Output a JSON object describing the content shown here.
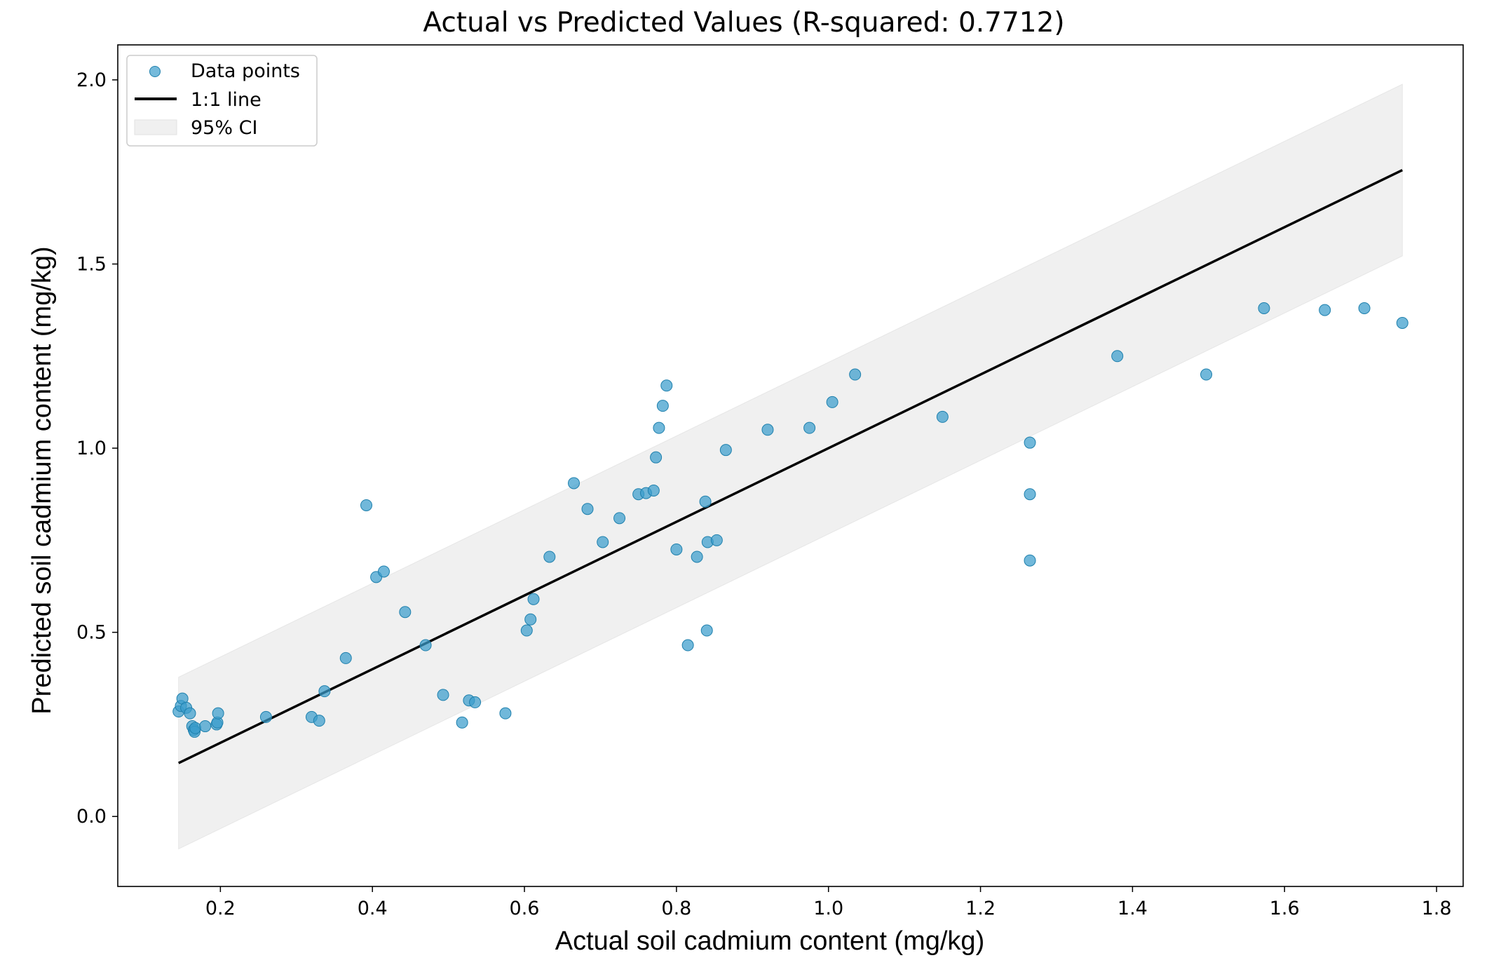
{
  "chart_data": {
    "type": "scatter",
    "title": "Actual vs Predicted Values (R-squared: 0.7712)",
    "xlabel": "Actual soil cadmium content (mg/kg)",
    "ylabel": "Predicted soil cadmium content (mg/kg)",
    "xlim": [
      0.065,
      1.835
    ],
    "ylim": [
      -0.19,
      2.095
    ],
    "x_ticks": [
      0.2,
      0.4,
      0.6,
      0.8,
      1.0,
      1.2,
      1.4,
      1.6,
      1.8
    ],
    "x_tick_labels": [
      "0.2",
      "0.4",
      "0.6",
      "0.8",
      "1.0",
      "1.2",
      "1.4",
      "1.6",
      "1.8"
    ],
    "y_ticks": [
      0.0,
      0.5,
      1.0,
      1.5,
      2.0
    ],
    "y_tick_labels": [
      "0.0",
      "0.5",
      "1.0",
      "1.5",
      "2.0"
    ],
    "grid": false,
    "legend_position": "top-left",
    "legend": [
      "Data points",
      "1:1 line",
      "95% CI"
    ],
    "colors": {
      "points": "#3a9dcc",
      "line": "#000000",
      "ci_band": "#f0f0f0"
    },
    "line_1to1": {
      "x": [
        0.145,
        1.755
      ],
      "y": [
        0.145,
        1.755
      ]
    },
    "ci_band": {
      "x": [
        0.145,
        1.755
      ],
      "lower": [
        -0.088,
        1.522
      ],
      "upper": [
        0.378,
        1.988
      ]
    },
    "series": [
      {
        "name": "Data points",
        "points": [
          [
            0.145,
            0.285
          ],
          [
            0.148,
            0.3
          ],
          [
            0.15,
            0.32
          ],
          [
            0.155,
            0.295
          ],
          [
            0.16,
            0.28
          ],
          [
            0.163,
            0.245
          ],
          [
            0.165,
            0.235
          ],
          [
            0.166,
            0.23
          ],
          [
            0.167,
            0.24
          ],
          [
            0.18,
            0.245
          ],
          [
            0.195,
            0.25
          ],
          [
            0.196,
            0.255
          ],
          [
            0.197,
            0.28
          ],
          [
            0.26,
            0.27
          ],
          [
            0.32,
            0.27
          ],
          [
            0.33,
            0.26
          ],
          [
            0.337,
            0.34
          ],
          [
            0.365,
            0.43
          ],
          [
            0.392,
            0.845
          ],
          [
            0.405,
            0.65
          ],
          [
            0.415,
            0.665
          ],
          [
            0.443,
            0.555
          ],
          [
            0.47,
            0.465
          ],
          [
            0.493,
            0.33
          ],
          [
            0.518,
            0.255
          ],
          [
            0.527,
            0.315
          ],
          [
            0.535,
            0.31
          ],
          [
            0.575,
            0.28
          ],
          [
            0.603,
            0.505
          ],
          [
            0.608,
            0.535
          ],
          [
            0.612,
            0.59
          ],
          [
            0.633,
            0.705
          ],
          [
            0.665,
            0.905
          ],
          [
            0.683,
            0.835
          ],
          [
            0.703,
            0.745
          ],
          [
            0.725,
            0.81
          ],
          [
            0.75,
            0.875
          ],
          [
            0.76,
            0.878
          ],
          [
            0.77,
            0.885
          ],
          [
            0.773,
            0.975
          ],
          [
            0.777,
            1.055
          ],
          [
            0.782,
            1.115
          ],
          [
            0.787,
            1.17
          ],
          [
            0.8,
            0.725
          ],
          [
            0.815,
            0.465
          ],
          [
            0.827,
            0.705
          ],
          [
            0.838,
            0.855
          ],
          [
            0.84,
            0.505
          ],
          [
            0.841,
            0.745
          ],
          [
            0.853,
            0.75
          ],
          [
            0.865,
            0.995
          ],
          [
            0.92,
            1.05
          ],
          [
            0.975,
            1.055
          ],
          [
            1.005,
            1.125
          ],
          [
            1.035,
            1.2
          ],
          [
            1.15,
            1.085
          ],
          [
            1.265,
            1.015
          ],
          [
            1.265,
            0.875
          ],
          [
            1.265,
            0.695
          ],
          [
            1.38,
            1.25
          ],
          [
            1.497,
            1.2
          ],
          [
            1.573,
            1.38
          ],
          [
            1.653,
            1.375
          ],
          [
            1.705,
            1.38
          ],
          [
            1.755,
            1.34
          ]
        ]
      }
    ]
  }
}
